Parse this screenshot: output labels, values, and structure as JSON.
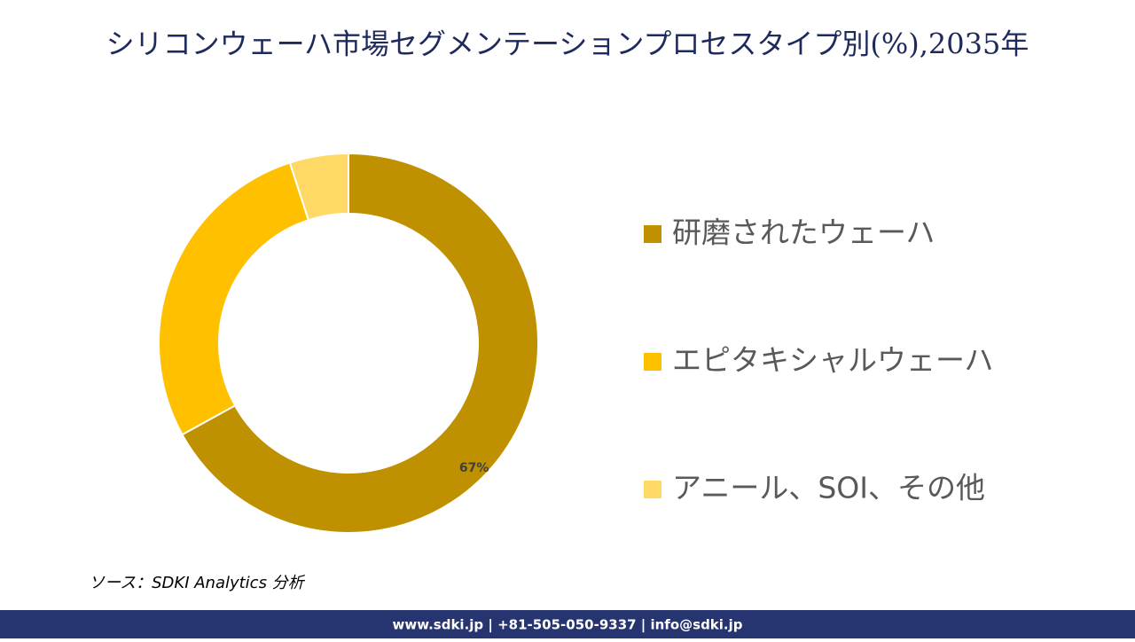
{
  "chart_data": {
    "type": "donut",
    "title": "シリコンウェーハ市場セグメンテーションプロセスタイプ別(%),2035年",
    "categories": [
      "研磨されたウェーハ",
      "エピタキシャルウェーハ",
      "アニール、SOI、その他"
    ],
    "values": [
      67,
      28,
      5
    ],
    "value_labels": [
      "67%",
      null,
      null
    ],
    "colors": [
      "#bf9000",
      "#ffc000",
      "#ffd966"
    ],
    "legend": "right"
  },
  "source": "ソース：SDKI Analytics 分析",
  "footer": "www.sdki.jp | +81-505-050-9337 | info@sdki.jp"
}
